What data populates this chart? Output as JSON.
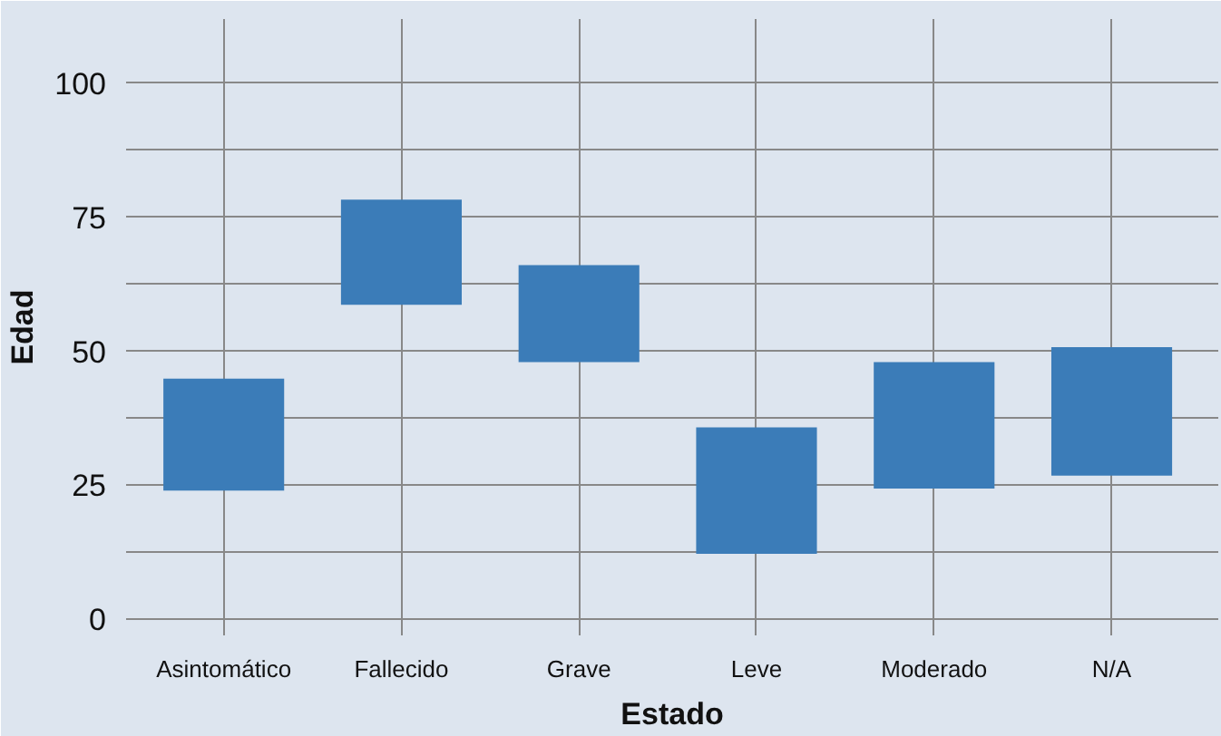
{
  "chart_data": {
    "type": "bar",
    "xlabel": "Estado",
    "ylabel": "Edad",
    "categories": [
      "Asintomático",
      "Fallecido",
      "Grave",
      "Leve",
      "Moderado",
      "N/A"
    ],
    "base": [
      24,
      58.7,
      48,
      12.2,
      24.4,
      26.8
    ],
    "values": [
      20.9,
      19.6,
      18.1,
      23.6,
      23.6,
      24
    ],
    "color": "#3b7cb8",
    "ylim": [
      -3,
      112
    ],
    "yticks": [
      0,
      {
        "value": 12.5,
        "label": null
      },
      25,
      {
        "value": 37.5,
        "label": null
      },
      50,
      {
        "value": 62.5,
        "label": null
      },
      75,
      {
        "value": 87.5,
        "label": null
      },
      100
    ],
    "grid": true
  }
}
